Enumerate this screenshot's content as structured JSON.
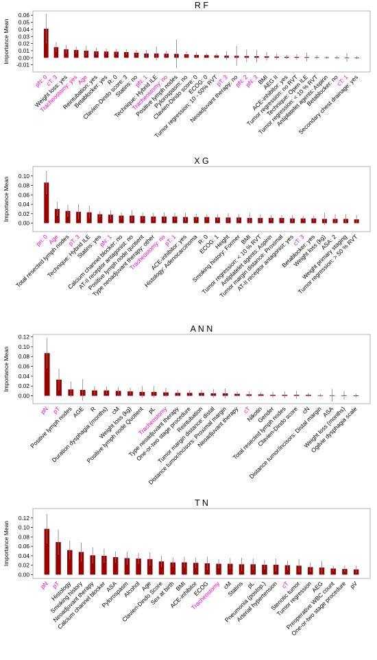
{
  "colors": {
    "bar": "#990000",
    "error": "#7f7f7f",
    "label_default": "#000000",
    "label_highlight": "#ff00cc",
    "frame": "#9e9e9e"
  },
  "chart_data": [
    {
      "type": "bar",
      "title": "R F",
      "ylabel": "Importance Mean",
      "ylim": [
        -0.02,
        0.066
      ],
      "yticks": [
        "-0.01",
        "0.00",
        "0.01",
        "0.02",
        "0.03",
        "0.04",
        "0.05",
        "0.06"
      ],
      "categories": [
        "pN: 0",
        "cT: 3",
        "Weight loss: yes",
        "Tracheostomy: yes",
        "Age",
        "Reintubation: yes",
        "Betablocker: yes",
        "R: 0",
        "Clavien-Dindo score: 3",
        "Statins: no",
        "pN: 1",
        "Technique: Hybrid ILE",
        "Tracheostomy: no",
        "Positive lymph nodes",
        "Pylorospasm: no",
        "Clavien-Dindo score: 0",
        "ECOG: 0",
        "Tumor regression: 10 - 50% RVT",
        "pT: 3",
        "Neoadjuvant therapy: no",
        "pN: 2",
        "pN: 3",
        "BMI",
        "AEG II",
        "ACE-inhibitor: yes",
        "Tumor regression: no RVT",
        "Technique: Open ILE",
        "Tumor regression: < 10 % RVT",
        "Antiplatelet agents: Aspirin",
        "Betablocker: no",
        "cT: 1",
        "Secondary chest drainage: yes"
      ],
      "highlight": [
        true,
        true,
        false,
        true,
        true,
        false,
        false,
        false,
        false,
        false,
        true,
        false,
        true,
        false,
        false,
        false,
        false,
        false,
        true,
        false,
        true,
        true,
        false,
        false,
        false,
        false,
        false,
        false,
        false,
        false,
        true,
        false
      ],
      "values": [
        0.041,
        0.015,
        0.012,
        0.011,
        0.01,
        0.009,
        0.0088,
        0.0085,
        0.008,
        0.0072,
        0.006,
        0.006,
        0.0058,
        0.0055,
        0.005,
        0.004,
        0.0038,
        0.0033,
        0.003,
        0.0028,
        0.0025,
        0.0023,
        0.002,
        0.0016,
        0.0014,
        0.0012,
        0.001,
        0.0008,
        0.0006,
        0.0005,
        0.0004,
        0.0003
      ],
      "errors": [
        0.021,
        0.007,
        0.006,
        0.005,
        0.007,
        0.005,
        0.004,
        0.004,
        0.004,
        0.004,
        0.005,
        0.01,
        0.004,
        0.02,
        0.004,
        0.004,
        0.002,
        0.003,
        0.006,
        0.014,
        0.009,
        0.009,
        0.006,
        0.004,
        0.003,
        0.004,
        0.006,
        0.003,
        0.002,
        0.002,
        0.006,
        0.002
      ]
    },
    {
      "type": "bar",
      "title": "X G",
      "ylabel": "Importance Mean",
      "ylim": [
        -0.018,
        0.12
      ],
      "yticks": [
        "0.00",
        "0.02",
        "0.04",
        "0.06",
        "0.08",
        "0.10"
      ],
      "categories": [
        "pn: 0",
        "Age",
        "Total resected lymph nodes",
        "pT: 3",
        "Technique: Hybrid ILE",
        "Statins: yes",
        "pN: 1",
        "Calcium channel blocker: no",
        "AT-II receptor antagonist: no",
        "Positive lymph node quotient",
        "Type neoadjuvant therapy: other",
        "Tracheostomy: no",
        "pT: 1",
        "ACE-inhibitor: yes",
        "Histology: Adenocarcinoma",
        "R: 0",
        "ECOG: 1",
        "Height",
        "Smoking history: Former",
        "BMI",
        "Tumor regression: < 10 % RVT",
        "Antiplatelet agents: Aspirin",
        "Tumor margin distance: Proximal",
        "AT-II receptor antagonist: yes",
        "cT: 3",
        "Betablocker: yes",
        "Weight loss (kg)",
        "ASA: 2",
        "Weight primary staging",
        "Tumor regression: > 50 % RVT"
      ],
      "highlight": [
        true,
        true,
        false,
        true,
        false,
        false,
        true,
        false,
        false,
        false,
        false,
        true,
        true,
        false,
        false,
        false,
        false,
        false,
        false,
        false,
        false,
        false,
        false,
        false,
        true,
        false,
        false,
        false,
        false,
        false
      ],
      "values": [
        0.086,
        0.03,
        0.026,
        0.024,
        0.023,
        0.019,
        0.018,
        0.016,
        0.016,
        0.015,
        0.014,
        0.014,
        0.014,
        0.013,
        0.013,
        0.013,
        0.012,
        0.012,
        0.012,
        0.011,
        0.011,
        0.011,
        0.011,
        0.01,
        0.01,
        0.01,
        0.009,
        0.009,
        0.009,
        0.008
      ],
      "errors": [
        0.025,
        0.015,
        0.013,
        0.016,
        0.014,
        0.007,
        0.01,
        0.007,
        0.012,
        0.008,
        0.008,
        0.009,
        0.008,
        0.009,
        0.007,
        0.006,
        0.007,
        0.009,
        0.007,
        0.011,
        0.008,
        0.006,
        0.006,
        0.007,
        0.005,
        0.006,
        0.013,
        0.01,
        0.01,
        0.009
      ]
    },
    {
      "type": "bar",
      "title": "A N N",
      "ylabel": "Importance Mean",
      "ylim": [
        -0.016,
        0.125
      ],
      "yticks": [
        "0.00",
        "0.02",
        "0.04",
        "0.06",
        "0.08",
        "0.10",
        "0.12"
      ],
      "categories": [
        "pN",
        "pT",
        "Positive lymph nodes",
        "AGE",
        "R",
        "Duration dysphagia (months)",
        "cM",
        "Weight loss (kg)",
        "Positive lymph node Quotient",
        "pL",
        "Tracheostomy",
        "Type neoadjuvant therapy",
        "One-or-two stage procedure",
        "Reintubation",
        "Tumor margin distance: distal",
        "Distance tumor/incisors: Proximal margin",
        "Neoadjuvant therapy",
        "cT",
        "Nikotin",
        "Gender",
        "Total resected lymph nodes",
        "Clavien-Dindo score",
        "cN",
        "Distance tumor/incisors: Distal margin",
        "ASA",
        "Weight loss (months)",
        "Ogilvie dysphagia scale"
      ],
      "highlight": [
        true,
        true,
        false,
        false,
        false,
        false,
        false,
        false,
        false,
        false,
        true,
        false,
        false,
        false,
        false,
        false,
        false,
        true,
        false,
        false,
        false,
        false,
        false,
        false,
        false,
        false,
        false
      ],
      "values": [
        0.087,
        0.033,
        0.013,
        0.012,
        0.011,
        0.011,
        0.01,
        0.009,
        0.008,
        0.008,
        0.007,
        0.006,
        0.006,
        0.006,
        0.005,
        0.005,
        0.004,
        0.003,
        0.003,
        0.002,
        0.002,
        0.002,
        0.002,
        0.001,
        0.001,
        0.001,
        0.0005
      ],
      "errors": [
        0.031,
        0.022,
        0.016,
        0.022,
        0.009,
        0.008,
        0.008,
        0.007,
        0.012,
        0.012,
        0.009,
        0.006,
        0.005,
        0.006,
        0.009,
        0.01,
        0.005,
        0.006,
        0.004,
        0.006,
        0.007,
        0.008,
        0.004,
        0.003,
        0.013,
        0.009,
        0.004
      ]
    },
    {
      "type": "bar",
      "title": "T N",
      "ylabel": "Importance Mean",
      "ylim": [
        -0.008,
        0.14
      ],
      "yticks": [
        "0.00",
        "0.02",
        "0.04",
        "0.06",
        "0.08",
        "0.10",
        "0.12"
      ],
      "categories": [
        "pN",
        "pT",
        "Histology",
        "Smoking history",
        "Neoadjuvant therapy",
        "Calcium channel blocker",
        "ASA",
        "Pylorospasm",
        "Alcohol",
        "Age",
        "Clavien-Dindo Score",
        "Sex at birth",
        "BMI",
        "ACE-inhibitor",
        "ECOG",
        "Tracheostomy",
        "cM",
        "Statins",
        "pL",
        "Pneumonia (postop.)",
        "Arterial hypertension",
        "cT",
        "Stenotic tumor",
        "Tumor regression",
        "AEG",
        "Preoperative WBC count",
        "One-or-two stage procedure",
        "pV"
      ],
      "highlight": [
        true,
        true,
        false,
        false,
        false,
        false,
        false,
        false,
        false,
        false,
        false,
        false,
        false,
        false,
        false,
        true,
        false,
        false,
        false,
        false,
        false,
        true,
        false,
        false,
        false,
        false,
        false,
        false
      ],
      "values": [
        0.097,
        0.069,
        0.052,
        0.048,
        0.041,
        0.04,
        0.037,
        0.035,
        0.034,
        0.033,
        0.028,
        0.026,
        0.026,
        0.025,
        0.024,
        0.023,
        0.023,
        0.022,
        0.022,
        0.021,
        0.021,
        0.02,
        0.019,
        0.016,
        0.015,
        0.013,
        0.012,
        0.011
      ],
      "errors": [
        0.031,
        0.027,
        0.02,
        0.02,
        0.017,
        0.015,
        0.012,
        0.014,
        0.012,
        0.014,
        0.012,
        0.01,
        0.012,
        0.011,
        0.014,
        0.01,
        0.012,
        0.014,
        0.012,
        0.01,
        0.013,
        0.01,
        0.014,
        0.01,
        0.014,
        0.006,
        0.007,
        0.008
      ]
    }
  ]
}
